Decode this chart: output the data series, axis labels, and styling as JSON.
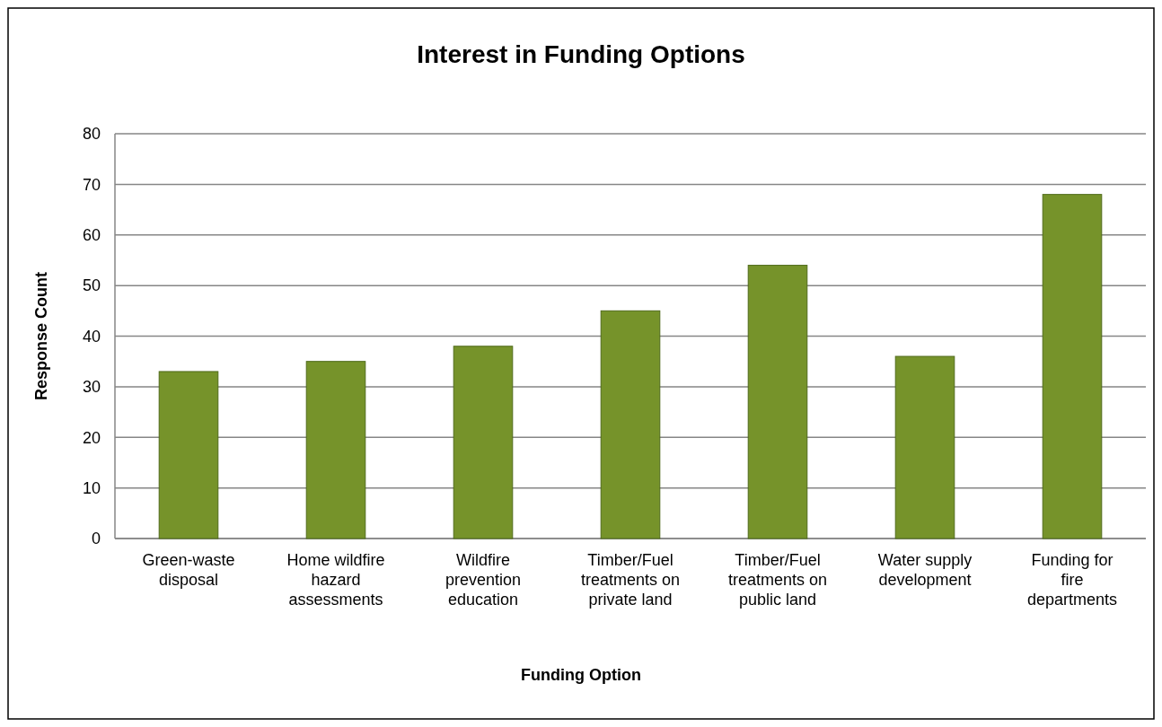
{
  "chart_data": {
    "type": "bar",
    "title": "Interest in Funding Options",
    "xlabel": "Funding Option",
    "ylabel": "Response Count",
    "categories": [
      "Green-waste disposal",
      "Home wildfire hazard assessments",
      "Wildfire prevention education",
      "Timber/Fuel treatments on private land",
      "Timber/Fuel treatments on public land",
      "Water supply development",
      "Funding for fire departments"
    ],
    "values": [
      33,
      35,
      38,
      45,
      54,
      36,
      68
    ],
    "color": "#76932a",
    "ylim": [
      0,
      80
    ],
    "yticks": [
      0,
      10,
      20,
      30,
      40,
      50,
      60,
      70,
      80
    ],
    "grid": "y"
  }
}
